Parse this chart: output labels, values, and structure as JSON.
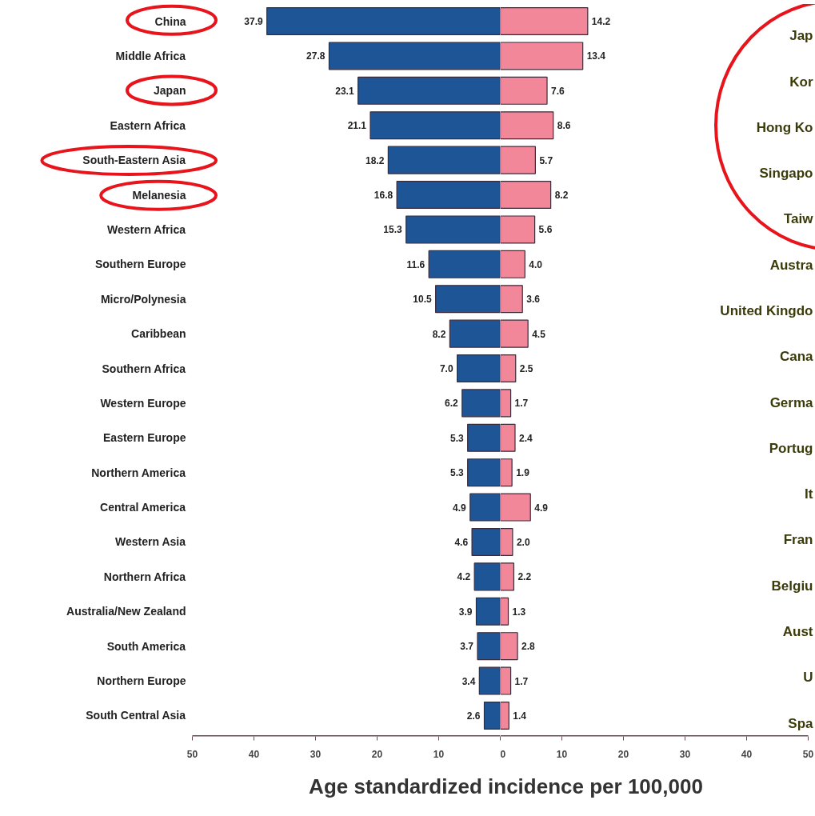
{
  "chart_data": [
    {
      "type": "bar",
      "orientation": "horizontal",
      "xlabel": "Age standardized incidence per 100,000",
      "categories": [
        "China",
        "Middle Africa",
        "Japan",
        "Eastern Africa",
        "South-Eastern Asia",
        "Melanesia",
        "Western Africa",
        "Southern Europe",
        "Micro/Polynesia",
        "Caribbean",
        "Southern Africa",
        "Western Europe",
        "Eastern Europe",
        "Northern America",
        "Central America",
        "Western Asia",
        "Northern Africa",
        "Australia/New Zealand",
        "South America",
        "Northern Europe",
        "South Central Asia"
      ],
      "series": [
        {
          "color": "#1d5596",
          "values": [
            37.9,
            27.8,
            23.1,
            21.1,
            18.2,
            16.8,
            15.3,
            11.6,
            10.5,
            8.2,
            7.0,
            6.2,
            5.3,
            5.3,
            4.9,
            4.6,
            4.2,
            3.9,
            3.7,
            3.4,
            2.6
          ],
          "value_labels": [
            "37.9",
            "27.8",
            "23.1",
            "21.1",
            "18.2",
            "16.8",
            "15.3",
            "11.6",
            "10.5",
            "8.2",
            "7.0",
            "6.2",
            "5.3",
            "5.3",
            "4.9",
            "4.6",
            "4.2",
            "3.9",
            "3.7",
            "3.4",
            "2.6"
          ]
        }
      ],
      "xlim": [
        50,
        0
      ],
      "xticks": [
        50,
        40,
        30,
        20,
        10
      ],
      "grid": false
    },
    {
      "type": "bar",
      "orientation": "horizontal",
      "categories": [
        null,
        null,
        null,
        null,
        null,
        null,
        null,
        null,
        null,
        null,
        null,
        null,
        null,
        null,
        null,
        null,
        null,
        null,
        null,
        null,
        null
      ],
      "series": [
        {
          "color": "#f2879a",
          "values": [
            14.2,
            13.4,
            7.6,
            8.6,
            5.7,
            8.2,
            5.6,
            4.0,
            3.6,
            4.5,
            2.5,
            1.7,
            2.4,
            1.9,
            4.9,
            2.0,
            2.2,
            1.3,
            2.8,
            1.7,
            1.4
          ],
          "value_labels": [
            "14.2",
            "13.4",
            "7.6",
            "8.6",
            "5.7",
            "8.2",
            "5.6",
            "4.0",
            "3.6",
            "4.5",
            "2.5",
            "1.7",
            "2.4",
            "1.9",
            "4.9",
            "2.0",
            "2.2",
            "1.3",
            "2.8",
            "1.7",
            "1.4"
          ]
        }
      ],
      "xlim": [
        0,
        50
      ],
      "xticks": [
        0,
        10,
        20,
        30,
        40,
        50
      ],
      "tick_labels": "x",
      "annotations": [
        "Jap",
        "Kor",
        "Hong Ko",
        "Singapo",
        "Taiw",
        "Austra",
        "United Kingdo",
        "Cana",
        "Germa",
        "Portug",
        "It",
        "Fran",
        "Belgiu",
        "Aust",
        "U",
        "Spa"
      ],
      "grid": false
    }
  ]
}
